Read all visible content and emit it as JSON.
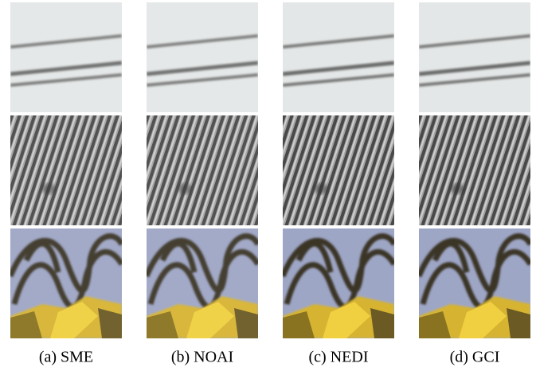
{
  "figure": {
    "captions": [
      "(a) SME",
      "(b) NOAI",
      "(c) NEDI",
      "(d) GCI"
    ]
  }
}
